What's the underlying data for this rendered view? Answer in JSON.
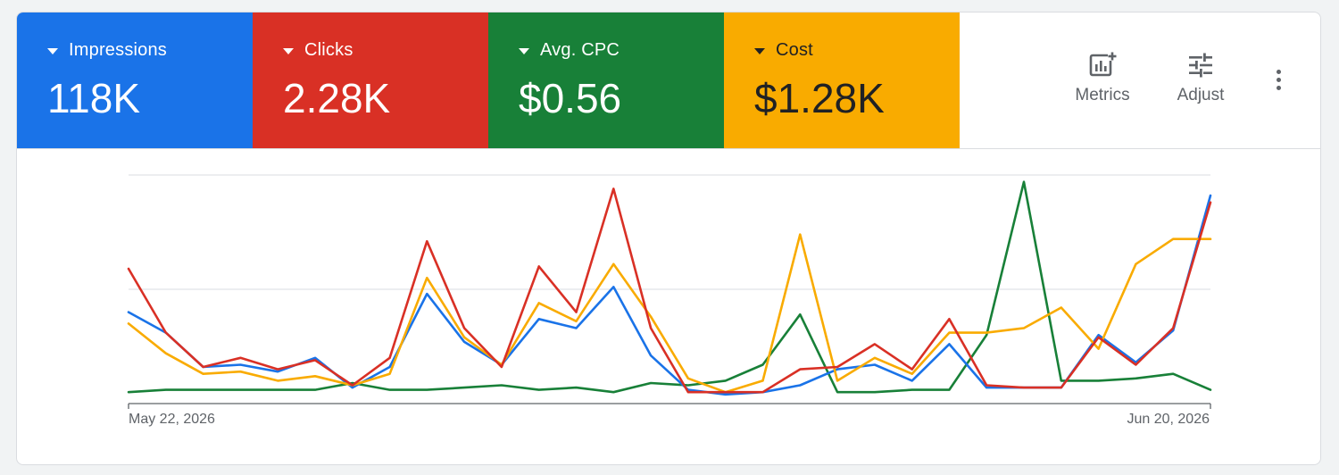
{
  "scorecards": [
    {
      "label": "Impressions",
      "value": "118K",
      "bg": "#1a73e8",
      "fg": "#ffffff"
    },
    {
      "label": "Clicks",
      "value": "2.28K",
      "bg": "#d93025",
      "fg": "#ffffff"
    },
    {
      "label": "Avg. CPC",
      "value": "$0.56",
      "bg": "#188038",
      "fg": "#ffffff"
    },
    {
      "label": "Cost",
      "value": "$1.28K",
      "bg": "#f9ab00",
      "fg": "#202124"
    }
  ],
  "tools": {
    "metrics_label": "Metrics",
    "adjust_label": "Adjust",
    "metrics_icon": "add-chart-icon",
    "adjust_icon": "tune-icon",
    "more_icon": "more-vert-icon"
  },
  "chart_data": {
    "type": "line",
    "x_start_label": "May 22, 2026",
    "x_end_label": "Jun 20, 2026",
    "x": [
      "May 22, 2026",
      "May 23, 2026",
      "May 24, 2026",
      "May 25, 2026",
      "May 26, 2026",
      "May 27, 2026",
      "May 28, 2026",
      "May 29, 2026",
      "May 30, 2026",
      "May 31, 2026",
      "Jun 1, 2026",
      "Jun 2, 2026",
      "Jun 3, 2026",
      "Jun 4, 2026",
      "Jun 5, 2026",
      "Jun 6, 2026",
      "Jun 7, 2026",
      "Jun 8, 2026",
      "Jun 9, 2026",
      "Jun 10, 2026",
      "Jun 11, 2026",
      "Jun 12, 2026",
      "Jun 13, 2026",
      "Jun 14, 2026",
      "Jun 15, 2026",
      "Jun 16, 2026",
      "Jun 17, 2026",
      "Jun 18, 2026",
      "Jun 19, 2026",
      "Jun 20, 2026"
    ],
    "ylim": [
      0,
      100
    ],
    "gridlines": [
      0,
      50,
      100
    ],
    "grid": true,
    "series": [
      {
        "color": "#1a73e8",
        "values": [
          40,
          31,
          16,
          17,
          14,
          20,
          7,
          16,
          48,
          27,
          17,
          37,
          33,
          51,
          21,
          6,
          4,
          5,
          8,
          15,
          17,
          10,
          26,
          7,
          7,
          7,
          30,
          18,
          32,
          91
        ]
      },
      {
        "color": "#d93025",
        "values": [
          59,
          31,
          16,
          20,
          15,
          19,
          8,
          20,
          71,
          33,
          16,
          60,
          40,
          94,
          33,
          5,
          5,
          5,
          15,
          16,
          26,
          15,
          37,
          8,
          7,
          7,
          29,
          17,
          33,
          88
        ]
      },
      {
        "color": "#188038",
        "values": [
          5,
          6,
          6,
          6,
          6,
          6,
          9,
          6,
          6,
          7,
          8,
          6,
          7,
          5,
          9,
          8,
          10,
          17,
          39,
          5,
          5,
          6,
          6,
          30,
          97,
          10,
          10,
          11,
          13,
          6
        ]
      },
      {
        "color": "#f9ab00",
        "values": [
          35,
          22,
          13,
          14,
          10,
          12,
          8,
          13,
          55,
          29,
          17,
          44,
          36,
          61,
          38,
          11,
          5,
          10,
          74,
          10,
          20,
          13,
          31,
          31,
          33,
          42,
          24,
          61,
          72,
          72
        ]
      }
    ]
  }
}
